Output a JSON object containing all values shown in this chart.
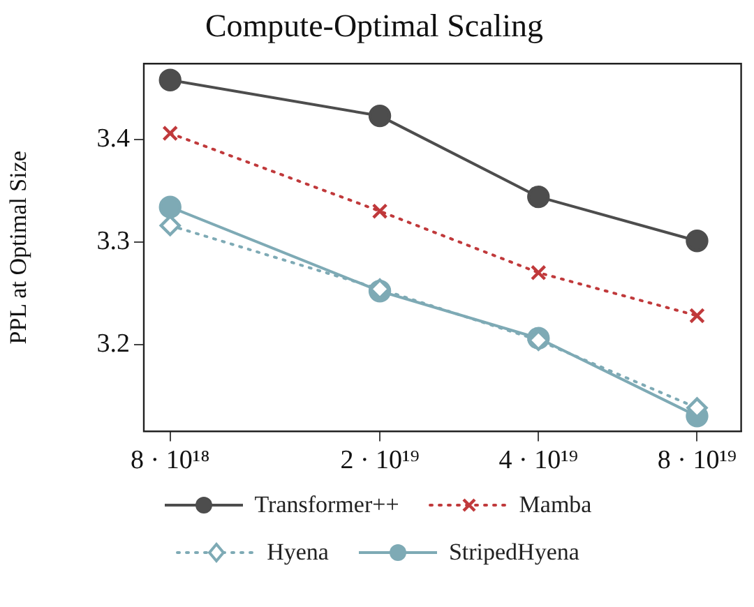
{
  "chart_data": {
    "type": "line",
    "title": "Compute-Optimal Scaling",
    "ylabel": "PPL at Optimal Size",
    "x": [
      8e+18,
      2e+19,
      4e+19,
      8e+19
    ],
    "series": [
      {
        "name": "Transformer++",
        "color": "#4d4d4d",
        "marker": "circle",
        "line_style": "solid",
        "values": [
          3.458,
          3.423,
          3.344,
          3.301
        ]
      },
      {
        "name": "Mamba",
        "color": "#c0393b",
        "marker": "cross",
        "line_style": "dotted",
        "values": [
          3.406,
          3.33,
          3.27,
          3.228
        ]
      },
      {
        "name": "Hyena",
        "color": "#7eaab5",
        "marker": "diamond",
        "line_style": "dotted",
        "values": [
          3.316,
          3.254,
          3.204,
          3.138
        ]
      },
      {
        "name": "StripedHyena",
        "color": "#7eaab5",
        "marker": "circle",
        "line_style": "solid",
        "values": [
          3.334,
          3.252,
          3.206,
          3.13
        ]
      }
    ],
    "log": "x",
    "xlim": [
      7.13e+18,
      9.7e+19
    ],
    "xticks": [
      {
        "value": 8e+18,
        "label": "8 · 10¹⁸"
      },
      {
        "value": 2e+19,
        "label": "2 · 10¹⁹"
      },
      {
        "value": 4e+19,
        "label": "4 · 10¹⁹"
      },
      {
        "value": 8e+19,
        "label": "8 · 10¹⁹"
      }
    ],
    "ylim": [
      3.115,
      3.474
    ],
    "yticks": [
      3.2,
      3.3,
      3.4
    ],
    "grid": false,
    "legend": "bottom"
  }
}
